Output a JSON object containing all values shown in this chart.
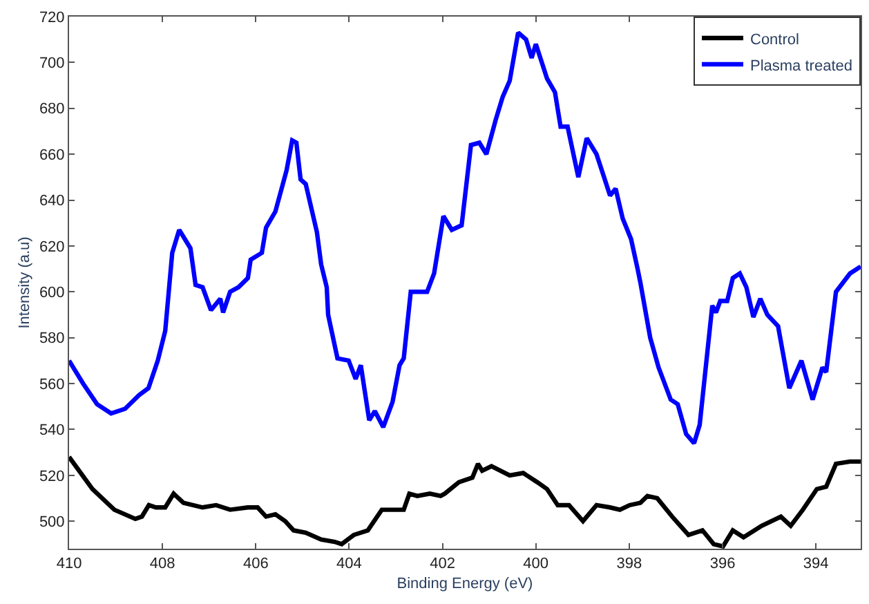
{
  "chart_data": {
    "type": "line",
    "xlabel": "Binding Energy (eV)",
    "ylabel": "Intensity (a.u)",
    "xlim": [
      410,
      393.04
    ],
    "xticks": [
      410,
      408,
      406,
      404,
      402,
      400,
      398,
      396,
      394
    ],
    "ylim": [
      488,
      720
    ],
    "yticks": [
      500,
      520,
      540,
      560,
      580,
      600,
      620,
      640,
      660,
      680,
      700,
      720
    ],
    "legend": "top right",
    "marker": "none",
    "line_style": "solid",
    "series": [
      {
        "name": "Control",
        "color": "#000000",
        "x": [
          410.0,
          409.5,
          409.03,
          408.58,
          408.44,
          408.29,
          408.14,
          407.94,
          407.76,
          407.55,
          407.14,
          406.85,
          406.55,
          406.17,
          405.96,
          405.78,
          405.58,
          405.37,
          405.19,
          404.93,
          404.6,
          404.31,
          404.16,
          403.9,
          403.6,
          403.3,
          403.01,
          402.83,
          402.71,
          402.54,
          402.27,
          402.04,
          401.95,
          401.65,
          401.36,
          401.24,
          401.15,
          400.95,
          400.56,
          400.27,
          399.97,
          399.76,
          399.53,
          399.29,
          398.99,
          398.7,
          398.41,
          398.2,
          397.99,
          397.76,
          397.61,
          397.4,
          397.08,
          396.73,
          396.43,
          396.19,
          395.99,
          395.78,
          395.55,
          395.16,
          394.75,
          394.54,
          394.28,
          393.98,
          393.78,
          393.57,
          393.27,
          393.04
        ],
        "values": [
          528,
          514,
          505,
          501,
          502,
          507,
          506,
          506,
          512,
          508,
          506,
          507,
          505,
          506,
          506,
          502,
          503,
          500,
          496,
          495,
          492,
          491,
          490,
          494,
          496,
          505,
          505,
          505,
          512,
          511,
          512,
          511,
          512,
          517,
          519,
          525,
          522,
          524,
          520,
          521,
          517,
          514,
          507,
          507,
          500,
          507,
          506,
          505,
          507,
          508,
          511,
          510,
          502,
          494,
          496,
          490,
          489,
          496,
          493,
          498,
          502,
          498,
          505,
          514,
          515,
          525,
          526,
          526
        ]
      },
      {
        "name": "Plasma treated",
        "color": "#0000ff",
        "x": [
          410.0,
          409.7,
          409.4,
          409.1,
          408.8,
          408.5,
          408.3,
          408.1,
          407.94,
          407.79,
          407.64,
          407.4,
          407.29,
          407.14,
          406.96,
          406.76,
          406.7,
          406.55,
          406.37,
          406.17,
          406.11,
          405.87,
          405.78,
          405.58,
          405.34,
          405.22,
          405.13,
          405.04,
          404.93,
          404.69,
          404.6,
          404.48,
          404.45,
          404.25,
          404.01,
          403.86,
          403.75,
          403.57,
          403.45,
          403.27,
          403.07,
          402.92,
          402.83,
          402.68,
          402.33,
          402.18,
          401.98,
          401.8,
          401.59,
          401.39,
          401.21,
          401.06,
          400.86,
          400.71,
          400.56,
          400.38,
          400.21,
          400.09,
          400.0,
          399.76,
          399.59,
          399.47,
          399.32,
          399.09,
          398.91,
          398.7,
          398.41,
          398.29,
          398.14,
          397.96,
          397.82,
          397.76,
          397.55,
          397.37,
          397.11,
          396.96,
          396.78,
          396.61,
          396.49,
          396.22,
          396.14,
          396.05,
          395.9,
          395.78,
          395.63,
          395.49,
          395.34,
          395.19,
          395.04,
          394.81,
          394.57,
          394.31,
          394.07,
          393.86,
          393.78,
          393.57,
          393.27,
          393.04
        ],
        "values": [
          570,
          560,
          551,
          547,
          549,
          555,
          558,
          570,
          583,
          617,
          627,
          619,
          603,
          602,
          592,
          597,
          591,
          600,
          602,
          606,
          614,
          617,
          628,
          635,
          653,
          666,
          665,
          649,
          647,
          626,
          612,
          602,
          590,
          571,
          570,
          562,
          568,
          544,
          548,
          541,
          552,
          568,
          571,
          600,
          600,
          608,
          633,
          627,
          629,
          664,
          665,
          660,
          675,
          685,
          692,
          713,
          710,
          702,
          708,
          693,
          687,
          672,
          672,
          650,
          667,
          660,
          642,
          645,
          632,
          623,
          610,
          604,
          580,
          567,
          553,
          551,
          538,
          534,
          542,
          594,
          591,
          596,
          596,
          606,
          608,
          602,
          589,
          597,
          590,
          585,
          558,
          570,
          553,
          567,
          565,
          600,
          608,
          611
        ]
      }
    ]
  }
}
